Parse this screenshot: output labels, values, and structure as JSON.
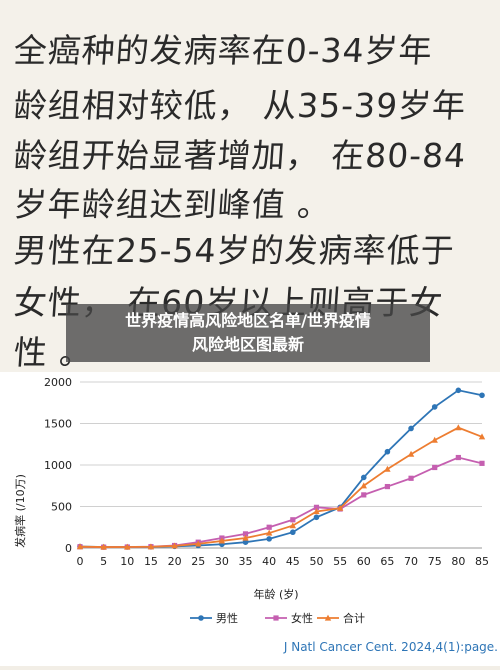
{
  "background_text": {
    "lines": [
      "全癌种的发病率在0-34岁年",
      "龄组相对较低， 从35-39岁年",
      "龄组开始显著增加， 在80-84",
      "岁年龄组达到峰值 。",
      "男性在25-54岁的发病率低于",
      "女性， 在60岁以上则高于女",
      "性 。"
    ]
  },
  "banner": {
    "line1": "世界疫情高风险地区名单/世界疫情",
    "line2": "风险地区图最新"
  },
  "citation": "J Natl Cancer Cent. 2024,4(1):page.",
  "chart_data": {
    "type": "line",
    "xlabel": "年龄 (岁)",
    "ylabel": "发病率 (/10万)",
    "x": [
      0,
      5,
      10,
      15,
      20,
      25,
      30,
      35,
      40,
      45,
      50,
      55,
      60,
      65,
      70,
      75,
      80,
      85
    ],
    "xticks": [
      "0",
      "5",
      "10",
      "15",
      "20",
      "25",
      "30",
      "35",
      "40",
      "45",
      "50",
      "55",
      "60",
      "65",
      "70",
      "75",
      "80",
      "85"
    ],
    "yticks": [
      "0",
      "500",
      "1000",
      "1500",
      "2000"
    ],
    "ylim": [
      0,
      2000
    ],
    "grid": true,
    "legend_position": "bottom",
    "series": [
      {
        "name": "男性",
        "color": "#2e75b6",
        "values": [
          18,
          12,
          12,
          14,
          20,
          30,
          45,
          70,
          110,
          190,
          370,
          490,
          850,
          1160,
          1440,
          1700,
          1900,
          1840
        ]
      },
      {
        "name": "女性",
        "color": "#c55fb0",
        "values": [
          15,
          10,
          12,
          16,
          30,
          70,
          120,
          170,
          250,
          340,
          490,
          470,
          640,
          740,
          840,
          970,
          1090,
          1020
        ]
      },
      {
        "name": "合计",
        "color": "#ed7d31",
        "values": [
          16,
          11,
          12,
          15,
          25,
          50,
          85,
          120,
          180,
          270,
          440,
          480,
          750,
          950,
          1130,
          1300,
          1450,
          1340
        ]
      }
    ]
  }
}
